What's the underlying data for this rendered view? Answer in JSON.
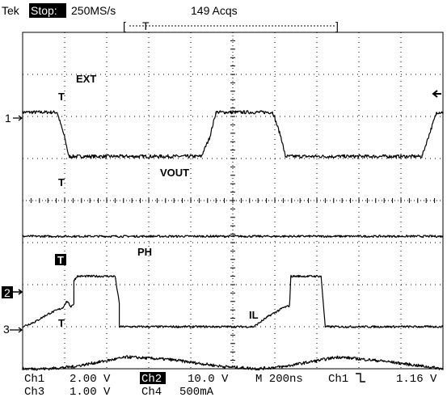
{
  "header": {
    "brand": "Tek",
    "run_state": "Stop:",
    "sample_rate": "250MS/s",
    "acqs": "149 Acqs"
  },
  "channel_markers": {
    "ch1": "1",
    "ch2": "2",
    "ch3": "3"
  },
  "trigger_marker": "T",
  "footer": {
    "row1": {
      "ch1": "Ch1",
      "ch1_scale": "2.00 V",
      "ch2": "Ch2",
      "ch2_scale": "10.0 V",
      "timebase": "M  200ns",
      "trig_source": "Ch1",
      "trig_level": "1.16 V"
    },
    "row2": {
      "ch3": "Ch3",
      "ch3_scale": "1.00 V",
      "ch4": "Ch4",
      "ch4_scale": "500mA"
    }
  },
  "chart_data": {
    "type": "line",
    "grid": true,
    "x_divisions": 10,
    "y_divisions": 8,
    "series": [
      {
        "name": "EXT",
        "points": [
          [
            0,
            6.1
          ],
          [
            0.82,
            6.1
          ],
          [
            1.0,
            5.5
          ],
          [
            1.1,
            5.05
          ],
          [
            4.25,
            5.05
          ],
          [
            4.45,
            5.5
          ],
          [
            4.6,
            6.1
          ],
          [
            5.95,
            6.1
          ],
          [
            6.15,
            5.5
          ],
          [
            6.25,
            5.05
          ],
          [
            9.5,
            5.05
          ],
          [
            9.65,
            5.5
          ],
          [
            9.85,
            6.1
          ],
          [
            10,
            6.1
          ]
        ],
        "noise": 0.04
      },
      {
        "name": "VOUT",
        "points": [
          [
            0,
            3.15
          ],
          [
            10,
            3.15
          ]
        ],
        "noise": 0.025
      },
      {
        "name": "PH",
        "points": [
          [
            0,
            1.0
          ],
          [
            0.3,
            1.12
          ],
          [
            0.6,
            1.3
          ],
          [
            0.95,
            1.45
          ],
          [
            1.05,
            1.6
          ],
          [
            1.15,
            1.48
          ],
          [
            1.22,
            1.55
          ],
          [
            1.22,
            2.1
          ],
          [
            1.3,
            2.2
          ],
          [
            2.2,
            2.2
          ],
          [
            2.3,
            1.55
          ],
          [
            2.3,
            1.0
          ],
          [
            5.5,
            1.0
          ],
          [
            5.85,
            1.25
          ],
          [
            6.2,
            1.45
          ],
          [
            6.35,
            1.5
          ],
          [
            6.38,
            2.2
          ],
          [
            7.1,
            2.2
          ],
          [
            7.2,
            1.0
          ],
          [
            10,
            1.0
          ]
        ],
        "noise": 0.025
      },
      {
        "name": "IL",
        "points": [
          [
            0,
            0.0
          ],
          [
            0.6,
            0.0
          ],
          [
            1.2,
            0.05
          ],
          [
            2.5,
            0.28
          ],
          [
            3.5,
            0.22
          ],
          [
            4.8,
            0.05
          ],
          [
            5.6,
            0.0
          ],
          [
            6.2,
            0.05
          ],
          [
            7.5,
            0.28
          ],
          [
            8.6,
            0.18
          ],
          [
            10,
            0.0
          ]
        ],
        "noise": 0.035
      }
    ]
  }
}
